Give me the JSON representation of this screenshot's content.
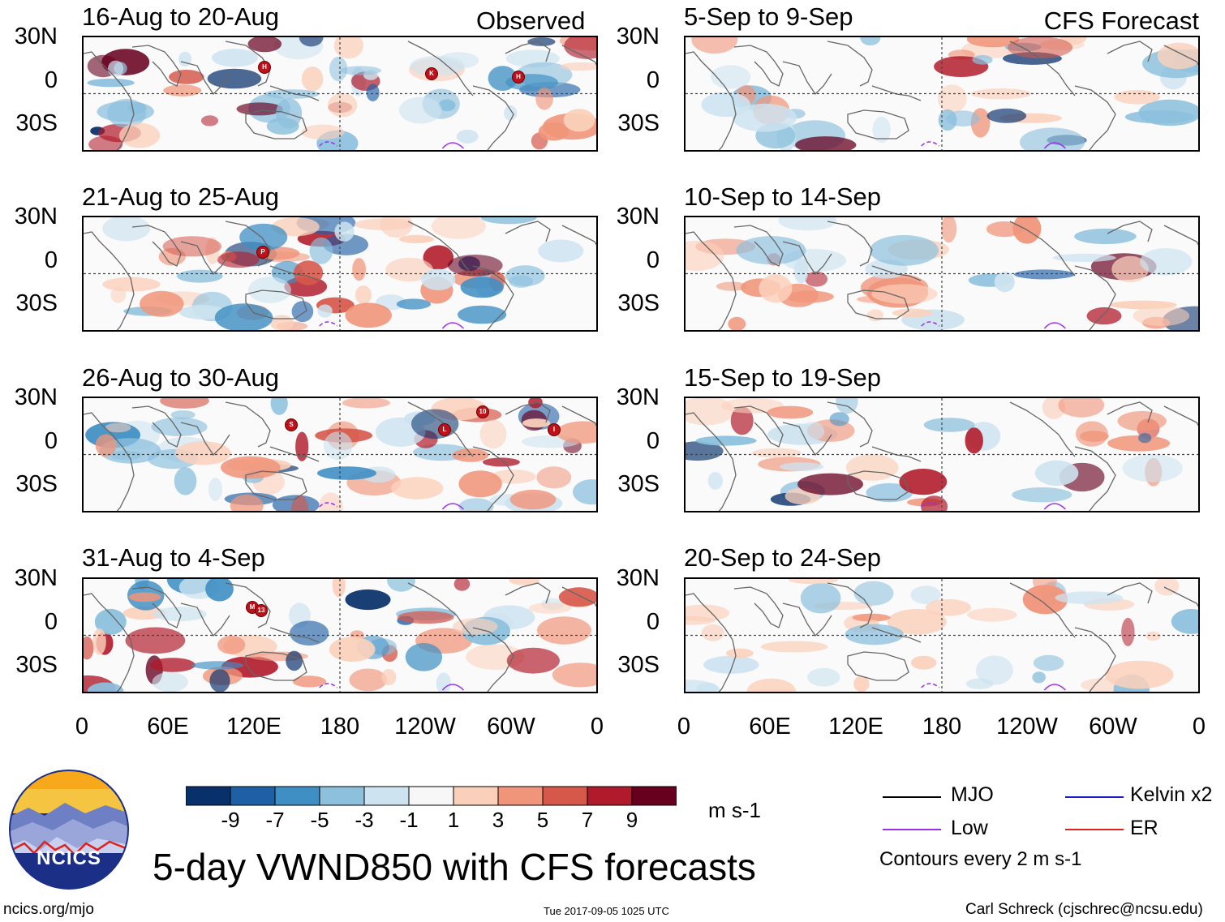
{
  "observed_label": "Observed",
  "forecast_label": "CFS Forecast",
  "panels_left": [
    {
      "period": "16-Aug to 20-Aug",
      "storms": [
        "H",
        "K",
        "H"
      ]
    },
    {
      "period": "21-Aug to 25-Aug",
      "storms": [
        "P"
      ]
    },
    {
      "period": "26-Aug to 30-Aug",
      "storms": [
        "S",
        "L",
        "10",
        "I"
      ]
    },
    {
      "period": "31-Aug to 4-Sep",
      "storms": [
        "M",
        "13"
      ]
    }
  ],
  "panels_right": [
    {
      "period": "5-Sep to 9-Sep"
    },
    {
      "period": "10-Sep to 14-Sep"
    },
    {
      "period": "15-Sep to 19-Sep"
    },
    {
      "period": "20-Sep to 24-Sep"
    }
  ],
  "lat_labels": [
    "30N",
    "0",
    "30S"
  ],
  "lon_labels": [
    "0",
    "60E",
    "120E",
    "180",
    "120W",
    "60W",
    "0"
  ],
  "colorbar": {
    "values": [
      "-9",
      "-7",
      "-5",
      "-3",
      "-1",
      "1",
      "3",
      "5",
      "7",
      "9"
    ],
    "colors": [
      "#08306b",
      "#1f5fa6",
      "#3f8fc4",
      "#8cc0dd",
      "#cde3f0",
      "#f7f7f7",
      "#fbd0bb",
      "#f0957a",
      "#d6584a",
      "#b01a2a",
      "#67001f"
    ],
    "units": "m s-1"
  },
  "legend": {
    "items": [
      {
        "label": "MJO",
        "color": "#000000"
      },
      {
        "label": "Kelvin x2",
        "color": "#1a1acd"
      },
      {
        "label": "Low",
        "color": "#9b30e8"
      },
      {
        "label": "ER",
        "color": "#e0201a"
      }
    ],
    "contour_note": "Contours every 2 m s-1"
  },
  "main_title": "5-day VWND850 with CFS forecasts",
  "logo_text": "NCICS",
  "url": "ncics.org/mjo",
  "timestamp": "Tue 2017-09-05 1025 UTC",
  "credit": "Carl Schreck (cjschrec@ncsu.edu)"
}
